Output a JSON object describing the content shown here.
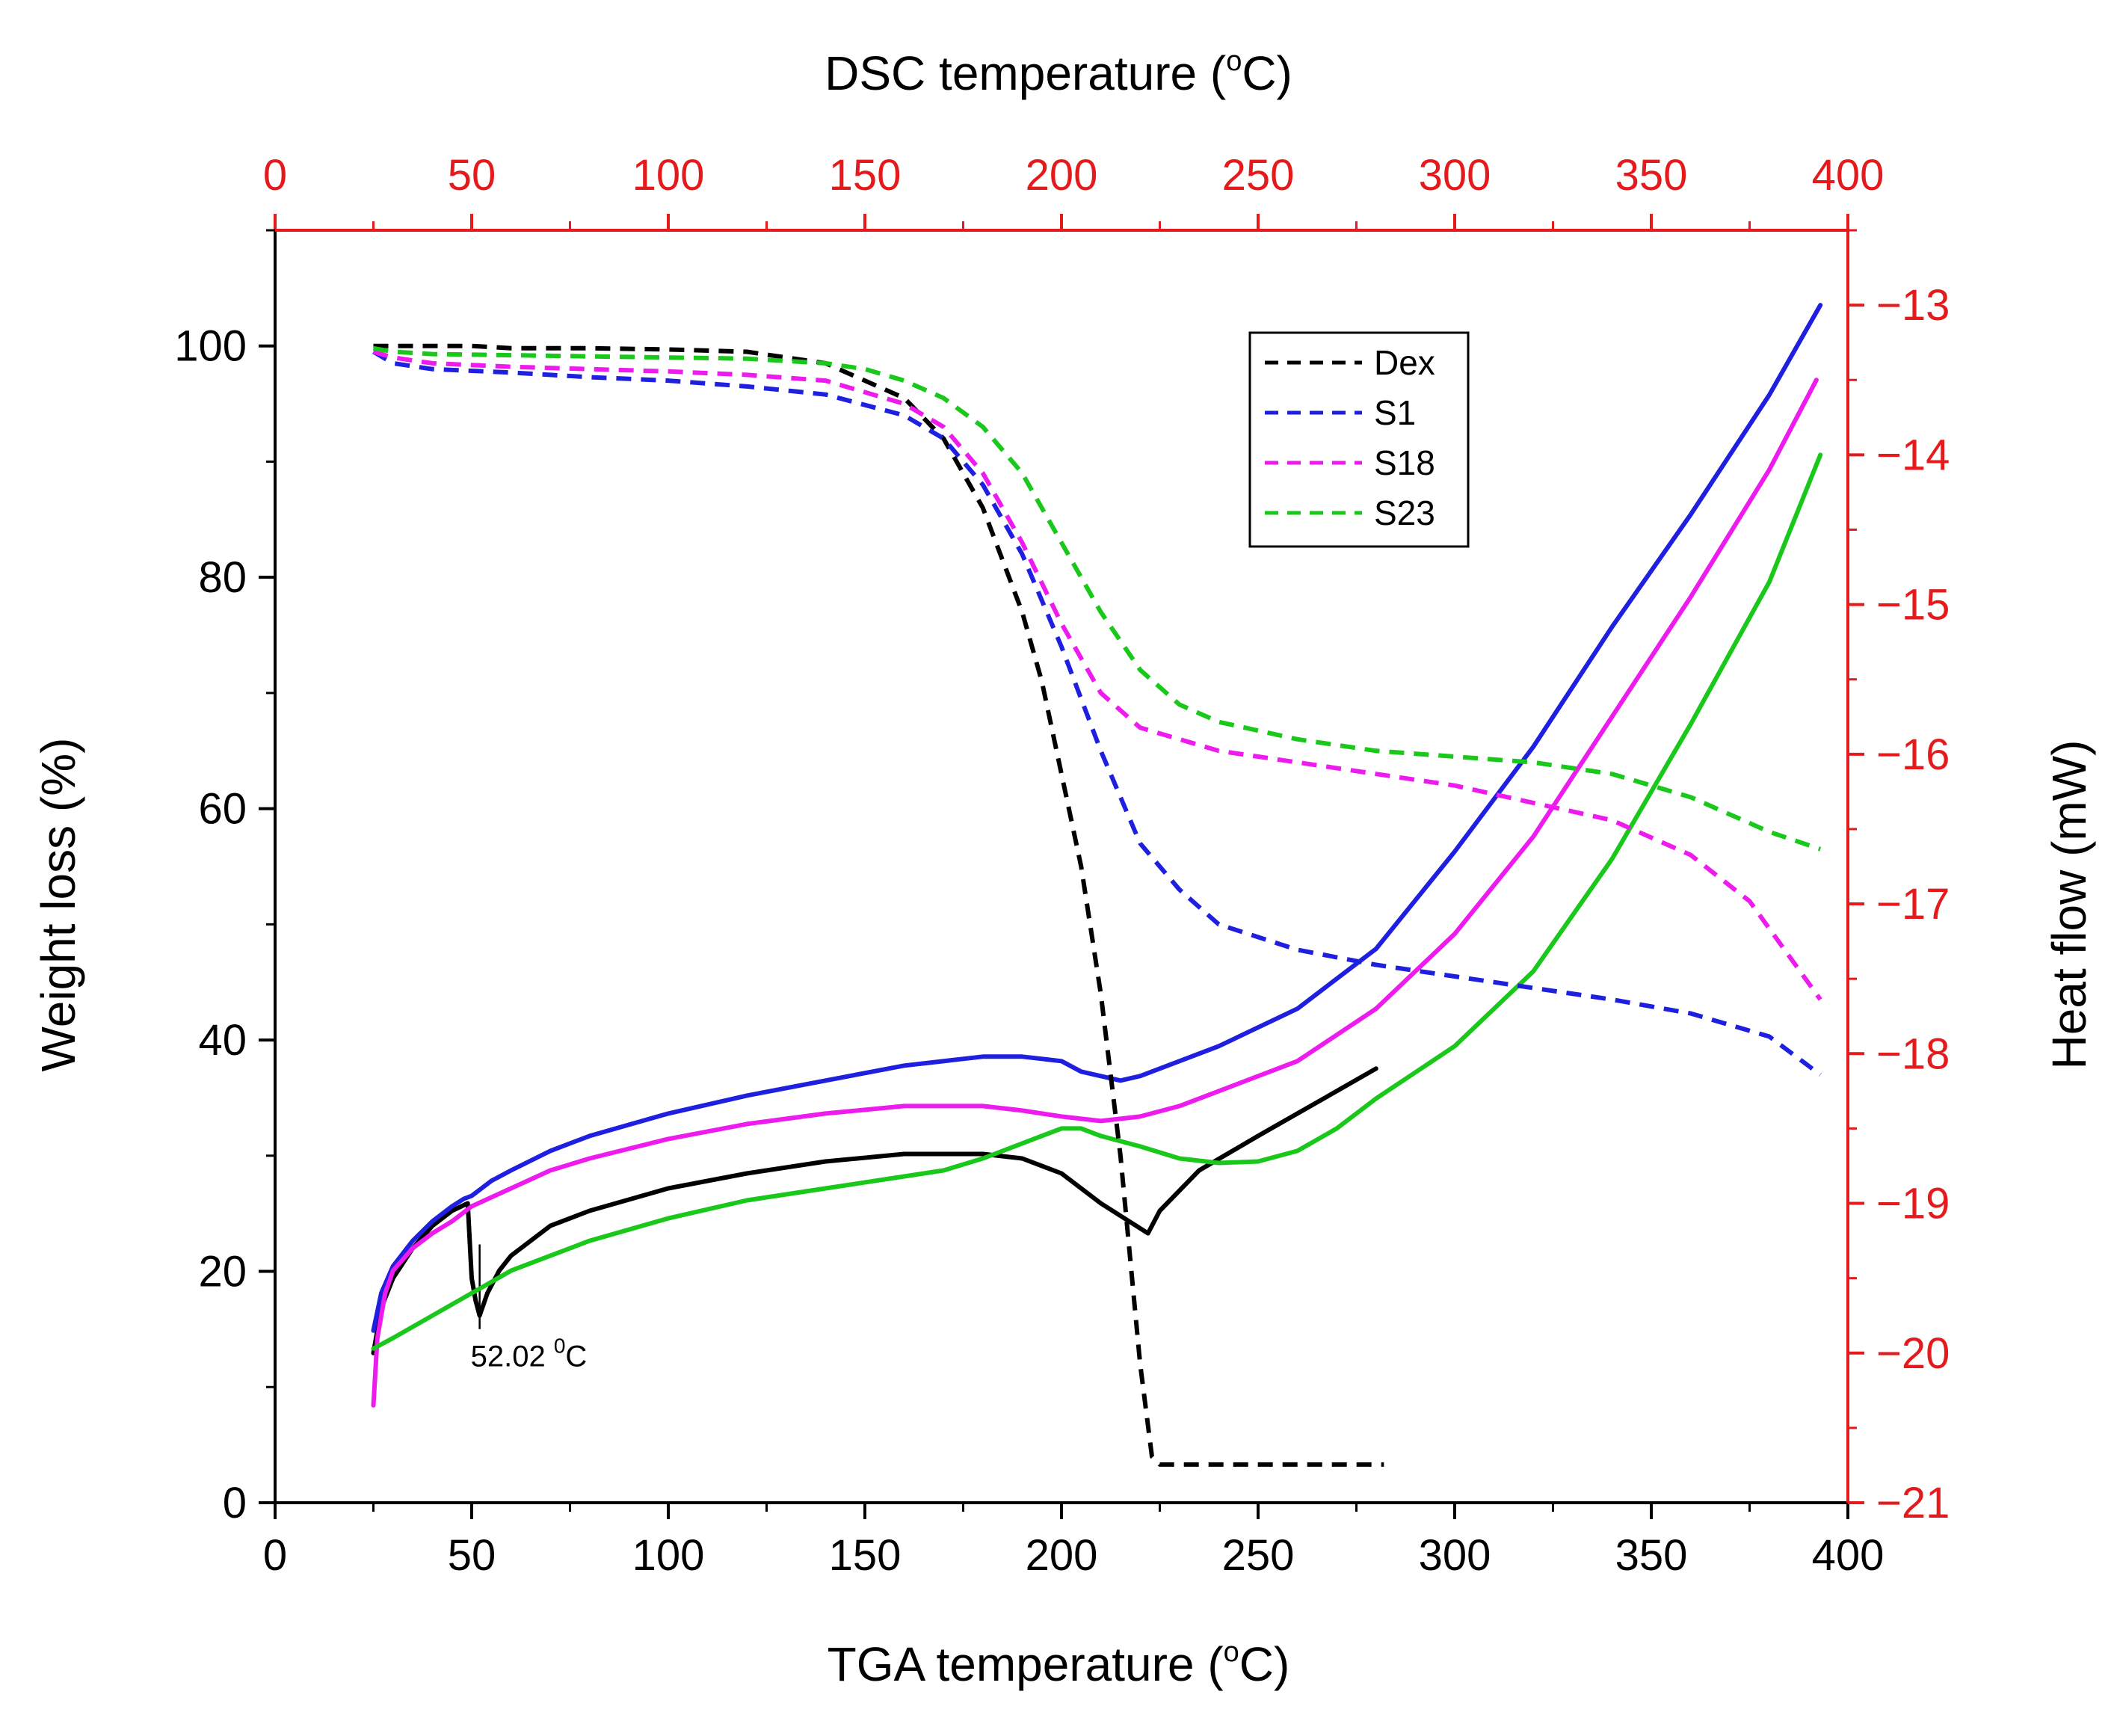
{
  "chart_data": {
    "type": "line",
    "colors": {
      "left_axis": "#000000",
      "right_axis": "#e41a1c",
      "top_axis": "#e41a1c",
      "Dex": "#000000",
      "S1": "#1f1fe0",
      "S18": "#ee1bee",
      "S23": "#19c81a"
    },
    "axes": {
      "bottom": {
        "label_prefix": "TGA temperature (",
        "label_sup": "o",
        "label_suffix": "C)",
        "range": [
          0,
          400
        ],
        "ticks": [
          "0",
          "50",
          "100",
          "150",
          "200",
          "250",
          "300",
          "350",
          "400"
        ]
      },
      "top": {
        "label_prefix": "DSC temperature (",
        "label_sup": "o",
        "label_suffix": "C)",
        "range": [
          0,
          400
        ],
        "ticks": [
          "0",
          "50",
          "100",
          "150",
          "200",
          "250",
          "300",
          "350",
          "400"
        ]
      },
      "left": {
        "label": "Weight loss (%)",
        "range": [
          0,
          110
        ],
        "ticks": [
          "0",
          "20",
          "40",
          "60",
          "80",
          "100"
        ]
      },
      "right": {
        "label": "Heat flow (mW)",
        "range": [
          -21,
          -12.5
        ],
        "ticks": [
          "−21",
          "−20",
          "−19",
          "−18",
          "−17",
          "−16",
          "−15",
          "−14",
          "−13"
        ]
      }
    },
    "legend": {
      "placement": "top-center",
      "entries": [
        "Dex",
        "S1",
        "S18",
        "S23"
      ]
    },
    "annotation": {
      "text_prefix": "52.02 ",
      "text_sup": "0",
      "text_suffix": "C",
      "x": 52.02,
      "y": -19.75,
      "target_y": -19.0
    },
    "tga_series": [
      {
        "name": "Dex",
        "x": [
          25,
          30,
          40,
          50,
          60,
          80,
          100,
          120,
          140,
          160,
          170,
          180,
          190,
          195,
          200,
          205,
          210,
          215,
          220,
          223,
          225,
          240,
          260,
          282
        ],
        "y": [
          100,
          100,
          100,
          100,
          99.8,
          99.8,
          99.7,
          99.5,
          98.5,
          95.5,
          92,
          86,
          77,
          71,
          63,
          55,
          44,
          30,
          12,
          4,
          3.3,
          3.3,
          3.3,
          3.3
        ]
      },
      {
        "name": "S1",
        "x": [
          25,
          30,
          40,
          60,
          80,
          100,
          120,
          140,
          160,
          170,
          180,
          190,
          200,
          210,
          220,
          230,
          240,
          260,
          280,
          300,
          320,
          340,
          360,
          380,
          393
        ],
        "y": [
          99.5,
          98.5,
          98,
          97.7,
          97.3,
          97,
          96.5,
          95.8,
          94,
          92,
          88,
          82,
          74,
          65,
          57,
          53,
          50,
          47.8,
          46.5,
          45.5,
          44.5,
          43.5,
          42.3,
          40.3,
          37
        ]
      },
      {
        "name": "S18",
        "x": [
          25,
          30,
          40,
          60,
          80,
          100,
          120,
          140,
          160,
          170,
          180,
          190,
          200,
          210,
          220,
          230,
          240,
          260,
          280,
          300,
          320,
          340,
          360,
          375,
          393
        ],
        "y": [
          99.5,
          99,
          98.5,
          98.2,
          98,
          97.8,
          97.5,
          97,
          95,
          93,
          89,
          83,
          76,
          70,
          67,
          66,
          65,
          64,
          63,
          62,
          60.5,
          59,
          56,
          52,
          43.5
        ]
      },
      {
        "name": "S23",
        "x": [
          25,
          30,
          40,
          60,
          80,
          100,
          120,
          140,
          150,
          160,
          170,
          180,
          190,
          200,
          210,
          220,
          230,
          240,
          260,
          280,
          300,
          320,
          340,
          360,
          380,
          393
        ],
        "y": [
          99.8,
          99.5,
          99.3,
          99.2,
          99.1,
          99,
          98.9,
          98.5,
          98,
          97,
          95.5,
          93,
          89,
          83,
          77,
          72,
          69,
          67.5,
          66,
          65,
          64.5,
          64,
          63,
          61,
          58,
          56.5
        ]
      }
    ],
    "dsc_series": [
      {
        "name": "Dex",
        "x": [
          25,
          27,
          30,
          35,
          40,
          45,
          49,
          50,
          51,
          52.02,
          54,
          57,
          60,
          70,
          80,
          100,
          120,
          140,
          160,
          180,
          190,
          200,
          210,
          222,
          225,
          235,
          250,
          260,
          270,
          280
        ],
        "y": [
          -20,
          -19.7,
          -19.5,
          -19.3,
          -19.15,
          -19.05,
          -19,
          -19.5,
          -19.65,
          -19.75,
          -19.6,
          -19.45,
          -19.35,
          -19.15,
          -19.05,
          -18.9,
          -18.8,
          -18.72,
          -18.67,
          -18.67,
          -18.7,
          -18.8,
          -19.0,
          -19.2,
          -19.05,
          -18.78,
          -18.55,
          -18.4,
          -18.25,
          -18.1
        ]
      },
      {
        "name": "S1",
        "x": [
          25,
          27,
          30,
          35,
          40,
          45,
          48,
          50,
          55,
          60,
          70,
          80,
          100,
          120,
          140,
          160,
          180,
          190,
          200,
          205,
          210,
          215,
          220,
          230,
          240,
          260,
          280,
          300,
          320,
          340,
          360,
          380,
          393
        ],
        "y": [
          -19.85,
          -19.6,
          -19.42,
          -19.25,
          -19.12,
          -19.02,
          -18.97,
          -18.95,
          -18.85,
          -18.78,
          -18.65,
          -18.55,
          -18.4,
          -18.28,
          -18.18,
          -18.08,
          -18.02,
          -18.02,
          -18.05,
          -18.12,
          -18.15,
          -18.18,
          -18.15,
          -18.05,
          -17.95,
          -17.7,
          -17.3,
          -16.65,
          -15.95,
          -15.15,
          -14.4,
          -13.6,
          -13.0
        ]
      },
      {
        "name": "S18",
        "x": [
          25,
          26,
          28,
          30,
          35,
          40,
          45,
          50,
          60,
          70,
          80,
          100,
          120,
          140,
          160,
          180,
          190,
          200,
          210,
          220,
          230,
          240,
          260,
          280,
          300,
          320,
          340,
          360,
          380,
          392
        ],
        "y": [
          -20.35,
          -19.9,
          -19.6,
          -19.45,
          -19.3,
          -19.2,
          -19.12,
          -19.02,
          -18.9,
          -18.78,
          -18.7,
          -18.57,
          -18.47,
          -18.4,
          -18.35,
          -18.35,
          -18.38,
          -18.42,
          -18.45,
          -18.42,
          -18.35,
          -18.25,
          -18.05,
          -17.7,
          -17.2,
          -16.55,
          -15.75,
          -14.95,
          -14.1,
          -13.5
        ]
      },
      {
        "name": "S23",
        "x": [
          25,
          30,
          40,
          50,
          60,
          70,
          80,
          100,
          120,
          140,
          160,
          170,
          180,
          190,
          200,
          205,
          210,
          220,
          230,
          240,
          250,
          260,
          270,
          280,
          300,
          320,
          340,
          360,
          380,
          393
        ],
        "y": [
          -19.97,
          -19.9,
          -19.75,
          -19.6,
          -19.45,
          -19.35,
          -19.25,
          -19.1,
          -18.98,
          -18.9,
          -18.82,
          -18.78,
          -18.7,
          -18.6,
          -18.5,
          -18.5,
          -18.55,
          -18.62,
          -18.7,
          -18.73,
          -18.72,
          -18.65,
          -18.5,
          -18.3,
          -17.95,
          -17.45,
          -16.7,
          -15.8,
          -14.85,
          -14.0
        ]
      }
    ]
  }
}
